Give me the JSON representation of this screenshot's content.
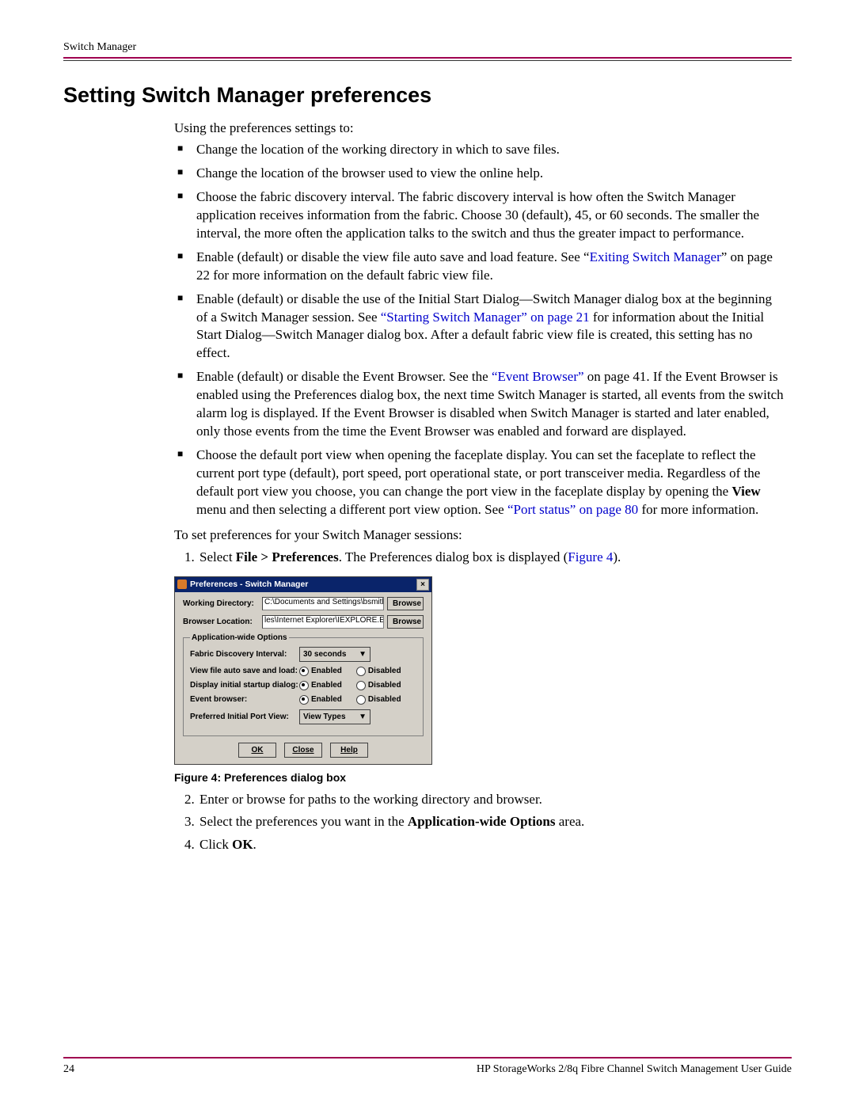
{
  "header": {
    "running": "Switch Manager"
  },
  "title": "Setting Switch Manager preferences",
  "intro": "Using the preferences settings to:",
  "bullets": {
    "b1": "Change the location of the working directory in which to save files.",
    "b2": "Change the location of the browser used to view the online help.",
    "b3": "Choose the fabric discovery interval. The fabric discovery interval is how often the Switch Manager application receives information from the fabric. Choose 30 (default), 45, or 60 seconds. The smaller the interval, the more often the application talks to the switch and thus the greater impact to performance.",
    "b4_pre": "Enable (default) or disable the view file auto save and load feature. See “",
    "b4_link": "Exiting Switch Manager",
    "b4_post": "” on page 22 for more information on the default fabric view file.",
    "b5_pre": "Enable (default) or disable the use of the Initial Start Dialog—Switch Manager dialog box at the beginning of a Switch Manager session. See ",
    "b5_link": "“Starting Switch Manager” on page 21",
    "b5_post": " for information about the Initial Start Dialog—Switch Manager dialog box. After a default fabric view file is created, this setting has no effect.",
    "b6_pre": "Enable (default) or disable the Event Browser. See the ",
    "b6_link": "“Event Browser”",
    "b6_post": " on page 41. If the Event Browser is enabled using the Preferences dialog box, the next time Switch Manager is started, all events from the switch alarm log is displayed. If the Event Browser is disabled when Switch Manager is started and later enabled, only those events from the time the Event Browser was enabled and forward are displayed.",
    "b7_pre": "Choose the default port view when opening the faceplate display. You can set the faceplate to reflect the current port type (default), port speed, port operational state, or port transceiver media. Regardless of the default port view you choose, you can change the port view in the faceplate display by opening the ",
    "b7_bold": "View",
    "b7_mid": " menu and then selecting a different port view option. See ",
    "b7_link": "“Port status” on page 80",
    "b7_post": " for more information."
  },
  "steps_intro": "To set preferences for your Switch Manager sessions:",
  "steps": {
    "s1_pre": "Select ",
    "s1_bold": "File > Preferences",
    "s1_mid": ". The Preferences dialog box is displayed (",
    "s1_link": "Figure 4",
    "s1_post": ").",
    "s2": "Enter or browse for paths to the working directory and browser.",
    "s3_pre": "Select the preferences you want in the ",
    "s3_bold": "Application-wide Options",
    "s3_post": " area.",
    "s4_pre": "Click ",
    "s4_bold": "OK",
    "s4_post": "."
  },
  "dialog": {
    "title": "Preferences - Switch Manager",
    "wd_label": "Working Directory:",
    "wd_value": "C:\\Documents and Settings\\bsmith",
    "bl_label": "Browser Location:",
    "bl_value": "les\\Internet Explorer\\IEXPLORE.EXE",
    "browse": "Browse",
    "group": "Application-wide Options",
    "interval_label": "Fabric Discovery Interval:",
    "interval_value": "30 seconds",
    "autosave_label": "View file auto save and load:",
    "startup_label": "Display initial startup dialog:",
    "eventbrowser_label": "Event browser:",
    "portview_label": "Preferred Initial Port View:",
    "portview_value": "View Types",
    "enabled": "Enabled",
    "disabled": "Disabled",
    "ok": "OK",
    "close": "Close",
    "help": "Help"
  },
  "figure_caption": "Figure 4:  Preferences dialog box",
  "footer": {
    "page": "24",
    "doc": "HP StorageWorks 2/8q Fibre Channel Switch Management User Guide"
  }
}
